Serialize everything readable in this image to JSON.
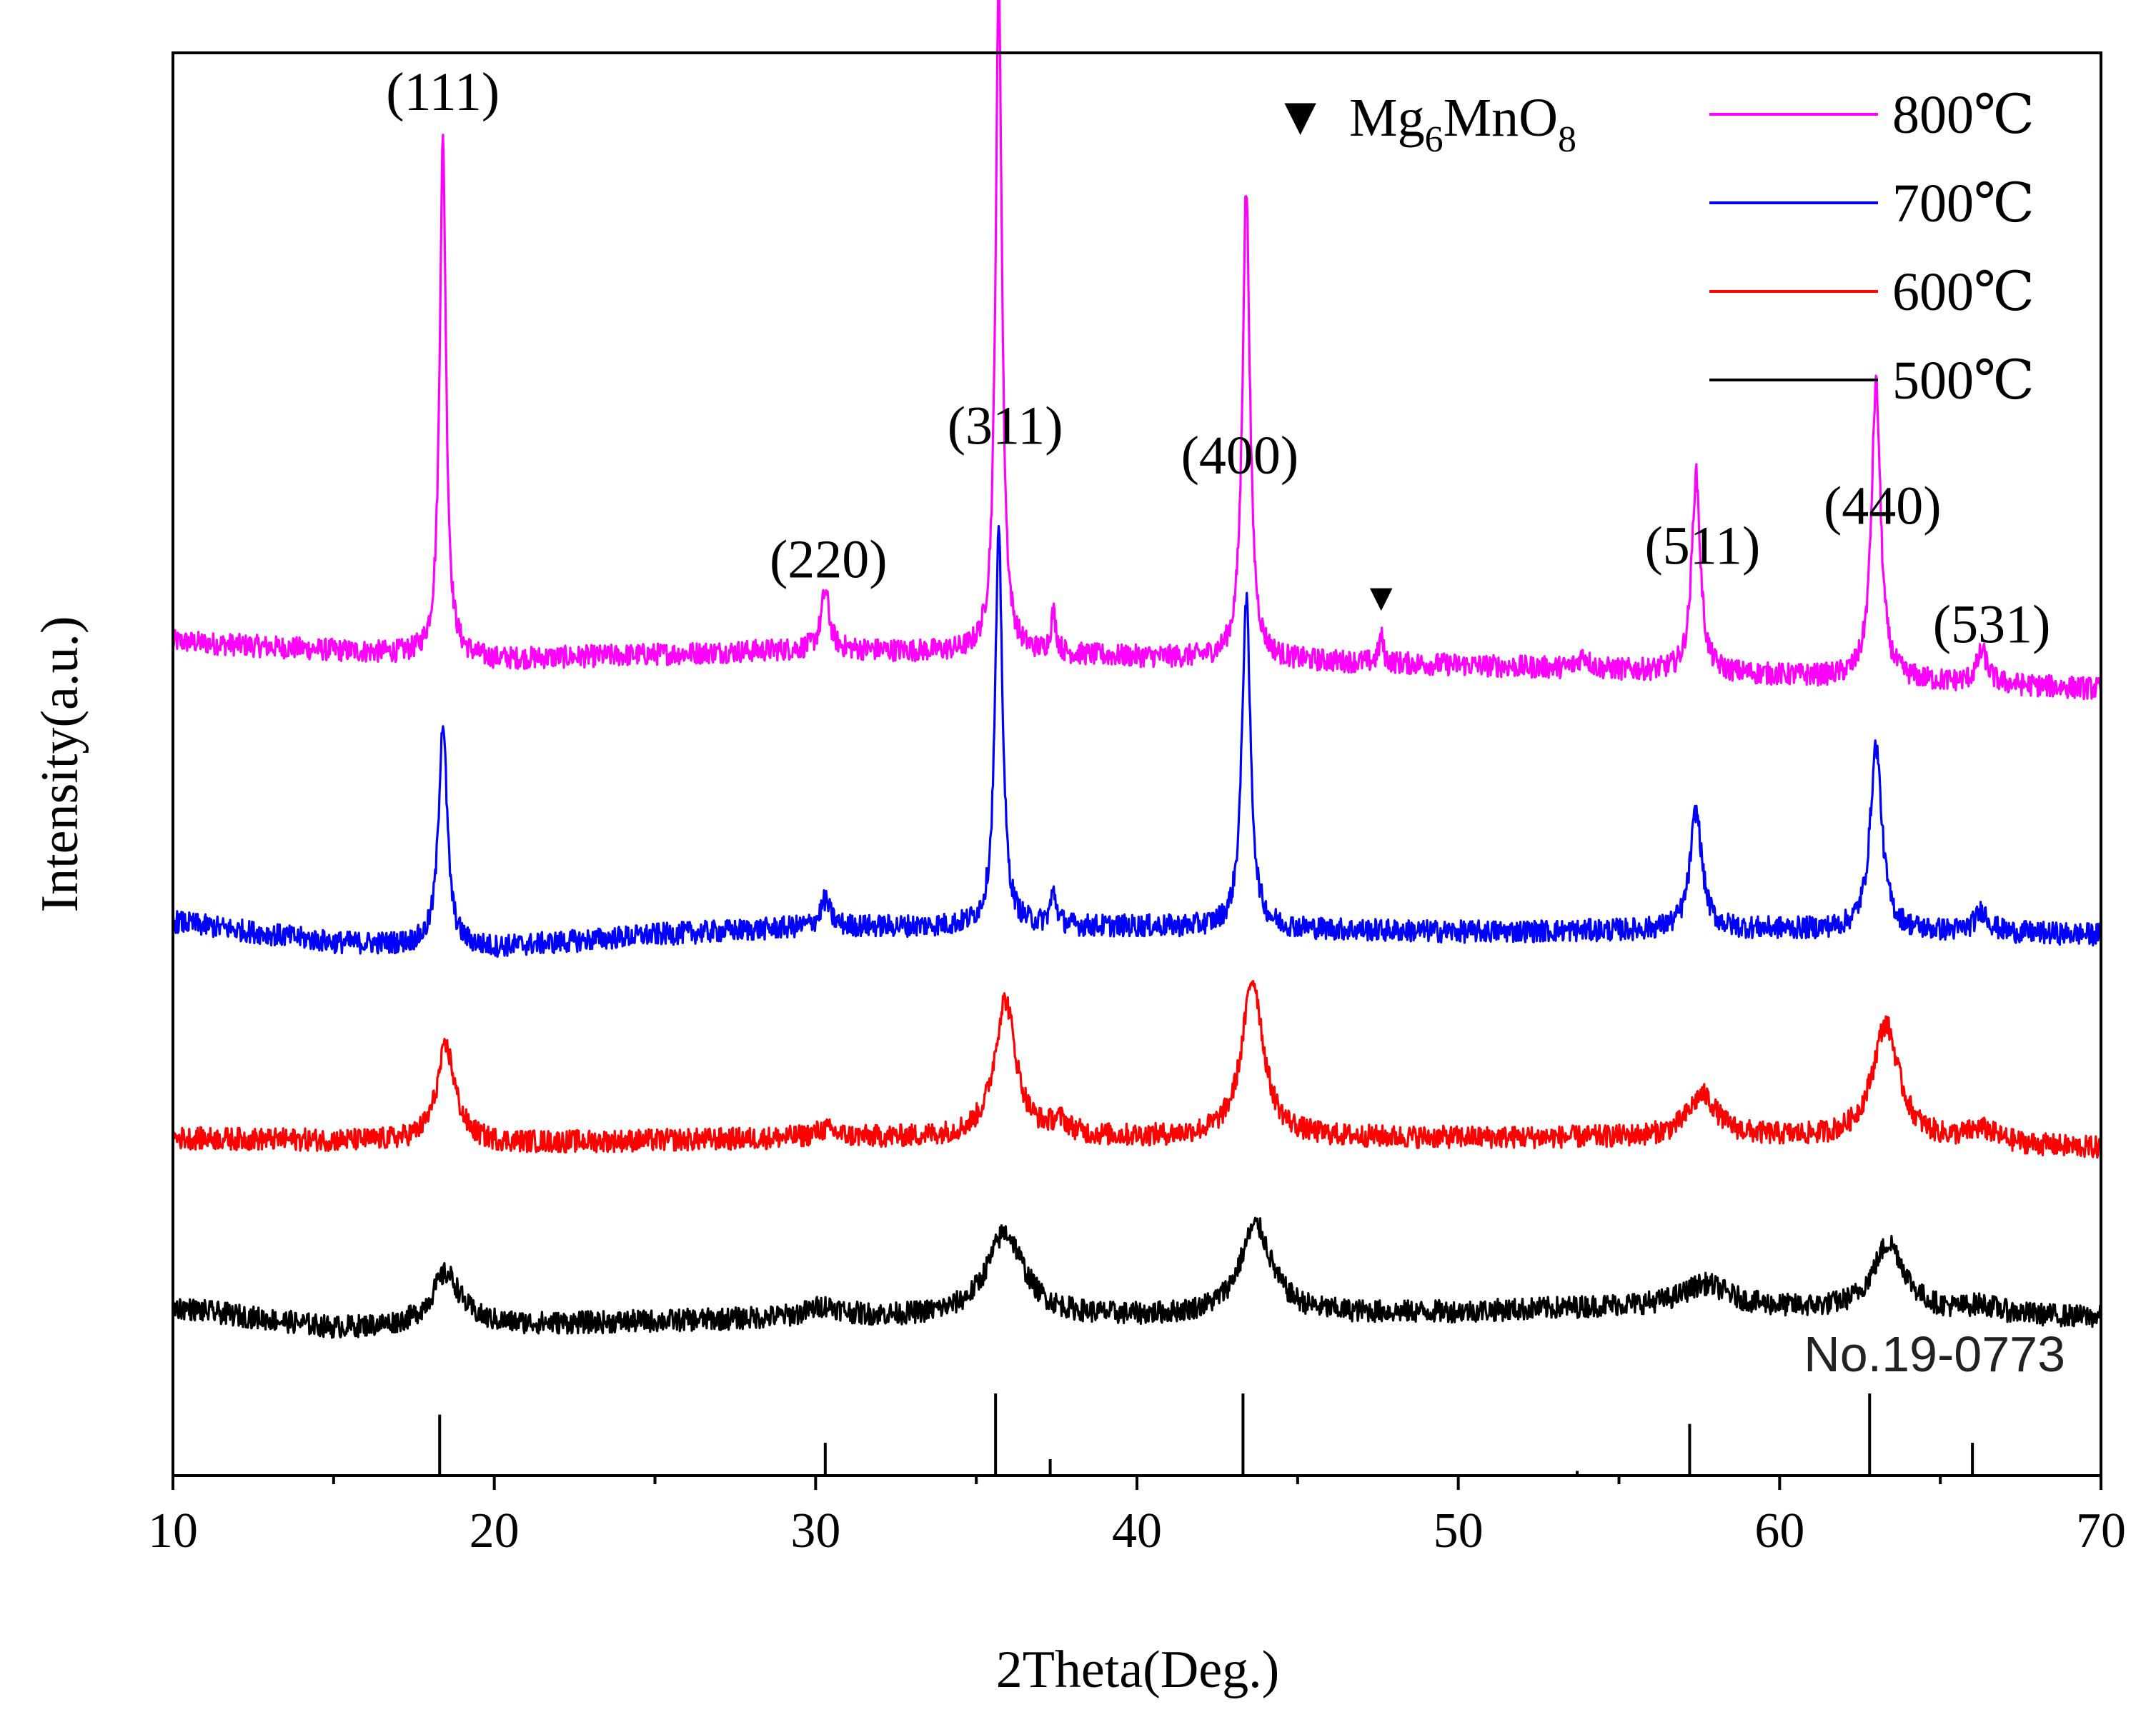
{
  "chart_data": {
    "type": "line",
    "title": "",
    "xlabel": "2Theta(Deg.)",
    "ylabel": "Intensity(a.u.)",
    "xlim": [
      10,
      70
    ],
    "xticks": [
      10,
      20,
      30,
      40,
      50,
      60,
      70
    ],
    "yticks": [],
    "grid": false,
    "legend_position": "top-right",
    "series": [
      {
        "name": "800℃",
        "color": "#ff00ff",
        "offset": 3.35,
        "baseline": [
          [
            10,
            0.05
          ],
          [
            20,
            -0.02
          ],
          [
            30,
            0.02
          ],
          [
            40,
            -0.01
          ],
          [
            50,
            -0.04
          ],
          [
            60,
            -0.08
          ],
          [
            70,
            -0.13
          ]
        ],
        "peaks": [
          [
            18.4,
            1.95,
            0.12
          ],
          [
            30.3,
            0.22,
            0.15
          ],
          [
            35.7,
            2.55,
            0.12
          ],
          [
            37.4,
            0.15,
            0.1
          ],
          [
            43.4,
            1.78,
            0.14
          ],
          [
            47.6,
            0.1,
            0.08
          ],
          [
            53.9,
            0.05,
            0.2
          ],
          [
            57.4,
            0.75,
            0.16
          ],
          [
            63.0,
            1.12,
            0.17
          ],
          [
            66.3,
            0.12,
            0.2
          ]
        ]
      },
      {
        "name": "700℃",
        "color": "#0000ff",
        "offset": 2.32,
        "baseline": [
          [
            10,
            0.02
          ],
          [
            15,
            -0.06
          ],
          [
            20,
            -0.08
          ],
          [
            25,
            -0.03
          ],
          [
            30,
            0.0
          ],
          [
            40,
            0.0
          ],
          [
            50,
            -0.02
          ],
          [
            60,
            -0.01
          ],
          [
            70,
            -0.03
          ]
        ],
        "peaks": [
          [
            18.4,
            0.85,
            0.16
          ],
          [
            30.3,
            0.1,
            0.18
          ],
          [
            35.7,
            1.48,
            0.14
          ],
          [
            37.4,
            0.12,
            0.12
          ],
          [
            43.4,
            1.25,
            0.16
          ],
          [
            57.4,
            0.45,
            0.22
          ],
          [
            63.0,
            0.7,
            0.22
          ],
          [
            66.3,
            0.08,
            0.25
          ]
        ]
      },
      {
        "name": "600℃",
        "color": "#ff0000",
        "offset": 1.52,
        "baseline": [
          [
            10,
            0.0
          ],
          [
            20,
            -0.02
          ],
          [
            30,
            0.0
          ],
          [
            40,
            0.0
          ],
          [
            50,
            0.0
          ],
          [
            60,
            0.0
          ],
          [
            70,
            -0.04
          ]
        ],
        "peaks": [
          [
            18.5,
            0.36,
            0.35
          ],
          [
            30.3,
            0.03,
            0.4
          ],
          [
            35.9,
            0.52,
            0.4
          ],
          [
            37.6,
            0.05,
            0.35
          ],
          [
            43.6,
            0.6,
            0.4
          ],
          [
            57.6,
            0.16,
            0.55
          ],
          [
            63.3,
            0.44,
            0.5
          ],
          [
            66.3,
            0.05,
            0.6
          ]
        ]
      },
      {
        "name": "500℃",
        "color": "#000000",
        "offset": 0.84,
        "baseline": [
          [
            10,
            0.04
          ],
          [
            15,
            -0.04
          ],
          [
            20,
            -0.03
          ],
          [
            30,
            0.0
          ],
          [
            40,
            0.0
          ],
          [
            50,
            0.02
          ],
          [
            55,
            0.04
          ],
          [
            60,
            0.03
          ],
          [
            70,
            0.0
          ]
        ],
        "peaks": [
          [
            18.5,
            0.2,
            0.55
          ],
          [
            30.3,
            0.04,
            0.6
          ],
          [
            35.9,
            0.32,
            0.7
          ],
          [
            43.7,
            0.34,
            0.6
          ],
          [
            57.7,
            0.09,
            0.9
          ],
          [
            63.4,
            0.26,
            0.6
          ],
          [
            66.3,
            0.03,
            0.6
          ]
        ]
      }
    ],
    "reference_pattern": {
      "label": "No.19-0773",
      "lines": [
        {
          "x": 18.3,
          "intensity": 0.26
        },
        {
          "x": 30.3,
          "intensity": 0.14
        },
        {
          "x": 35.6,
          "intensity": 0.35
        },
        {
          "x": 37.3,
          "intensity": 0.07
        },
        {
          "x": 43.3,
          "intensity": 0.35
        },
        {
          "x": 53.7,
          "intensity": 0.02
        },
        {
          "x": 57.2,
          "intensity": 0.22
        },
        {
          "x": 62.8,
          "intensity": 0.35
        },
        {
          "x": 66.0,
          "intensity": 0.14
        }
      ]
    },
    "peak_labels": [
      {
        "text": "(111)",
        "x": 18.4
      },
      {
        "text": "(220)",
        "x": 30.4
      },
      {
        "text": "(311)",
        "x": 35.9
      },
      {
        "text": "(400)",
        "x": 43.2
      },
      {
        "text": "(511)",
        "x": 57.6
      },
      {
        "text": "(440)",
        "x": 63.2
      },
      {
        "text": "(531)",
        "x": 66.6
      }
    ],
    "impurity_marker": {
      "symbol": "▼",
      "x": 47.6,
      "name_base": "Mg",
      "name_sub1": "6",
      "name_mid": "MnO",
      "name_sub2": "8"
    }
  }
}
